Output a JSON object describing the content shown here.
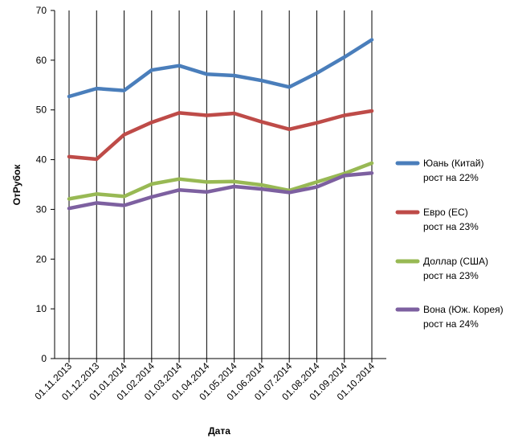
{
  "chart_data": {
    "type": "line",
    "xlabel": "Дата",
    "ylabel": "ОтРубок",
    "ylim": [
      0,
      70
    ],
    "ytick_step": 10,
    "grid": "vertical lines at each category",
    "legend_position": "right",
    "categories": [
      "01.11.2013",
      "01.12.2013",
      "01.01.2014",
      "01.02.2014",
      "01.03.2014",
      "01.04.2014",
      "01.05.2014",
      "01.06.2014",
      "01.07.2014",
      "01.08.2014",
      "01.09.2014",
      "01.10.2014"
    ],
    "series": [
      {
        "name": "Юань (Китай)",
        "note": "рост на 22%",
        "color": "#4a7ebb",
        "values": [
          52.7,
          54.3,
          53.9,
          58.0,
          58.9,
          57.2,
          56.9,
          55.9,
          54.6,
          57.4,
          60.6,
          64.1
        ]
      },
      {
        "name": "Евро (ЕС)",
        "note": "рост на 23%",
        "color": "#be4b48",
        "values": [
          40.6,
          40.1,
          45.0,
          47.5,
          49.4,
          48.9,
          49.3,
          47.6,
          46.1,
          47.4,
          48.9,
          49.8
        ]
      },
      {
        "name": "Доллар (США)",
        "note": "рост на 23%",
        "color": "#98b954",
        "values": [
          32.1,
          33.1,
          32.6,
          35.1,
          36.1,
          35.5,
          35.6,
          34.9,
          33.8,
          35.5,
          37.2,
          39.3
        ]
      },
      {
        "name": "Вона (Юж. Корея)",
        "note": "рост на 24%",
        "color": "#7d60a0",
        "values": [
          30.2,
          31.3,
          30.8,
          32.5,
          33.9,
          33.5,
          34.6,
          34.1,
          33.4,
          34.5,
          36.8,
          37.3
        ]
      }
    ]
  }
}
